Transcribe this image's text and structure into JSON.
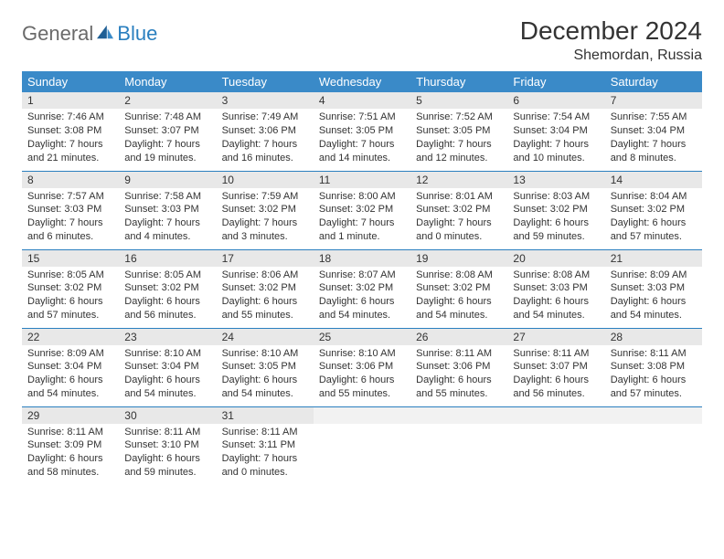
{
  "brand": {
    "part1": "General",
    "part2": "Blue"
  },
  "title": "December 2024",
  "location": "Shemordan, Russia",
  "colors": {
    "header_bg": "#3a8ac8",
    "header_text": "#ffffff",
    "daynum_bg": "#e8e8e8",
    "border": "#2a7fbf",
    "logo_gray": "#6a6a6a",
    "logo_blue": "#2a7fbf",
    "body_text": "#333333",
    "page_bg": "#ffffff"
  },
  "weekdays": [
    "Sunday",
    "Monday",
    "Tuesday",
    "Wednesday",
    "Thursday",
    "Friday",
    "Saturday"
  ],
  "weeks": [
    [
      {
        "n": "1",
        "sr": "Sunrise: 7:46 AM",
        "ss": "Sunset: 3:08 PM",
        "dl": "Daylight: 7 hours and 21 minutes."
      },
      {
        "n": "2",
        "sr": "Sunrise: 7:48 AM",
        "ss": "Sunset: 3:07 PM",
        "dl": "Daylight: 7 hours and 19 minutes."
      },
      {
        "n": "3",
        "sr": "Sunrise: 7:49 AM",
        "ss": "Sunset: 3:06 PM",
        "dl": "Daylight: 7 hours and 16 minutes."
      },
      {
        "n": "4",
        "sr": "Sunrise: 7:51 AM",
        "ss": "Sunset: 3:05 PM",
        "dl": "Daylight: 7 hours and 14 minutes."
      },
      {
        "n": "5",
        "sr": "Sunrise: 7:52 AM",
        "ss": "Sunset: 3:05 PM",
        "dl": "Daylight: 7 hours and 12 minutes."
      },
      {
        "n": "6",
        "sr": "Sunrise: 7:54 AM",
        "ss": "Sunset: 3:04 PM",
        "dl": "Daylight: 7 hours and 10 minutes."
      },
      {
        "n": "7",
        "sr": "Sunrise: 7:55 AM",
        "ss": "Sunset: 3:04 PM",
        "dl": "Daylight: 7 hours and 8 minutes."
      }
    ],
    [
      {
        "n": "8",
        "sr": "Sunrise: 7:57 AM",
        "ss": "Sunset: 3:03 PM",
        "dl": "Daylight: 7 hours and 6 minutes."
      },
      {
        "n": "9",
        "sr": "Sunrise: 7:58 AM",
        "ss": "Sunset: 3:03 PM",
        "dl": "Daylight: 7 hours and 4 minutes."
      },
      {
        "n": "10",
        "sr": "Sunrise: 7:59 AM",
        "ss": "Sunset: 3:02 PM",
        "dl": "Daylight: 7 hours and 3 minutes."
      },
      {
        "n": "11",
        "sr": "Sunrise: 8:00 AM",
        "ss": "Sunset: 3:02 PM",
        "dl": "Daylight: 7 hours and 1 minute."
      },
      {
        "n": "12",
        "sr": "Sunrise: 8:01 AM",
        "ss": "Sunset: 3:02 PM",
        "dl": "Daylight: 7 hours and 0 minutes."
      },
      {
        "n": "13",
        "sr": "Sunrise: 8:03 AM",
        "ss": "Sunset: 3:02 PM",
        "dl": "Daylight: 6 hours and 59 minutes."
      },
      {
        "n": "14",
        "sr": "Sunrise: 8:04 AM",
        "ss": "Sunset: 3:02 PM",
        "dl": "Daylight: 6 hours and 57 minutes."
      }
    ],
    [
      {
        "n": "15",
        "sr": "Sunrise: 8:05 AM",
        "ss": "Sunset: 3:02 PM",
        "dl": "Daylight: 6 hours and 57 minutes."
      },
      {
        "n": "16",
        "sr": "Sunrise: 8:05 AM",
        "ss": "Sunset: 3:02 PM",
        "dl": "Daylight: 6 hours and 56 minutes."
      },
      {
        "n": "17",
        "sr": "Sunrise: 8:06 AM",
        "ss": "Sunset: 3:02 PM",
        "dl": "Daylight: 6 hours and 55 minutes."
      },
      {
        "n": "18",
        "sr": "Sunrise: 8:07 AM",
        "ss": "Sunset: 3:02 PM",
        "dl": "Daylight: 6 hours and 54 minutes."
      },
      {
        "n": "19",
        "sr": "Sunrise: 8:08 AM",
        "ss": "Sunset: 3:02 PM",
        "dl": "Daylight: 6 hours and 54 minutes."
      },
      {
        "n": "20",
        "sr": "Sunrise: 8:08 AM",
        "ss": "Sunset: 3:03 PM",
        "dl": "Daylight: 6 hours and 54 minutes."
      },
      {
        "n": "21",
        "sr": "Sunrise: 8:09 AM",
        "ss": "Sunset: 3:03 PM",
        "dl": "Daylight: 6 hours and 54 minutes."
      }
    ],
    [
      {
        "n": "22",
        "sr": "Sunrise: 8:09 AM",
        "ss": "Sunset: 3:04 PM",
        "dl": "Daylight: 6 hours and 54 minutes."
      },
      {
        "n": "23",
        "sr": "Sunrise: 8:10 AM",
        "ss": "Sunset: 3:04 PM",
        "dl": "Daylight: 6 hours and 54 minutes."
      },
      {
        "n": "24",
        "sr": "Sunrise: 8:10 AM",
        "ss": "Sunset: 3:05 PM",
        "dl": "Daylight: 6 hours and 54 minutes."
      },
      {
        "n": "25",
        "sr": "Sunrise: 8:10 AM",
        "ss": "Sunset: 3:06 PM",
        "dl": "Daylight: 6 hours and 55 minutes."
      },
      {
        "n": "26",
        "sr": "Sunrise: 8:11 AM",
        "ss": "Sunset: 3:06 PM",
        "dl": "Daylight: 6 hours and 55 minutes."
      },
      {
        "n": "27",
        "sr": "Sunrise: 8:11 AM",
        "ss": "Sunset: 3:07 PM",
        "dl": "Daylight: 6 hours and 56 minutes."
      },
      {
        "n": "28",
        "sr": "Sunrise: 8:11 AM",
        "ss": "Sunset: 3:08 PM",
        "dl": "Daylight: 6 hours and 57 minutes."
      }
    ],
    [
      {
        "n": "29",
        "sr": "Sunrise: 8:11 AM",
        "ss": "Sunset: 3:09 PM",
        "dl": "Daylight: 6 hours and 58 minutes."
      },
      {
        "n": "30",
        "sr": "Sunrise: 8:11 AM",
        "ss": "Sunset: 3:10 PM",
        "dl": "Daylight: 6 hours and 59 minutes."
      },
      {
        "n": "31",
        "sr": "Sunrise: 8:11 AM",
        "ss": "Sunset: 3:11 PM",
        "dl": "Daylight: 7 hours and 0 minutes."
      },
      {
        "empty": true
      },
      {
        "empty": true
      },
      {
        "empty": true
      },
      {
        "empty": true
      }
    ]
  ]
}
